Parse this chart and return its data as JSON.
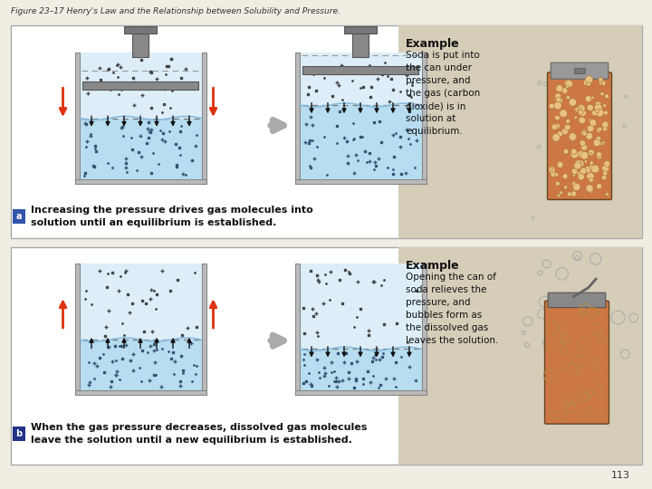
{
  "title": "Figure 23–17 Henry's Law and the Relationship between Solubility and Pressure.",
  "panel_a_label": "a",
  "panel_b_label": "b",
  "panel_a_text": "Increasing the pressure drives gas molecules into\nsolution until an equilibrium is established.",
  "panel_b_text": "When the gas pressure decreases, dissolved gas molecules\nleave the solution until a new equilibrium is established.",
  "example_a_title": "Example",
  "example_a_body": "Soda is put into\nthe can under\npressure, and\nthe gas (carbon\ndioxide) is in\nsolution at\nequilibrium.",
  "example_b_title": "Example",
  "example_b_body": "Opening the can of\nsoda relieves the\npressure, and\nbubbles form as\nthe dissolved gas\nleaves the solution.",
  "page_num": "113",
  "fig_bg": "#f0ede3",
  "panel_a_bg": "#ffffff",
  "panel_b_bg": "#ffffff",
  "example_a_bg": "#d5cdb8",
  "example_b_bg": "#d5cdb8",
  "tank_water_color": "#b8ddf0",
  "tank_gas_color": "#ddeef8",
  "tank_wall_color": "#bbbbbb",
  "tank_border": "#888888",
  "red_arrow_color": "#dd3311",
  "black_arrow_color": "#111111",
  "gray_arrow_color": "#999999",
  "can_body_color": "#cc7744",
  "can_metal_color": "#999999",
  "label_bg_a": "#3355aa",
  "label_bg_b": "#223388",
  "piston_color": "#888888",
  "dot_dark": "#333333",
  "dot_light": "#555599"
}
